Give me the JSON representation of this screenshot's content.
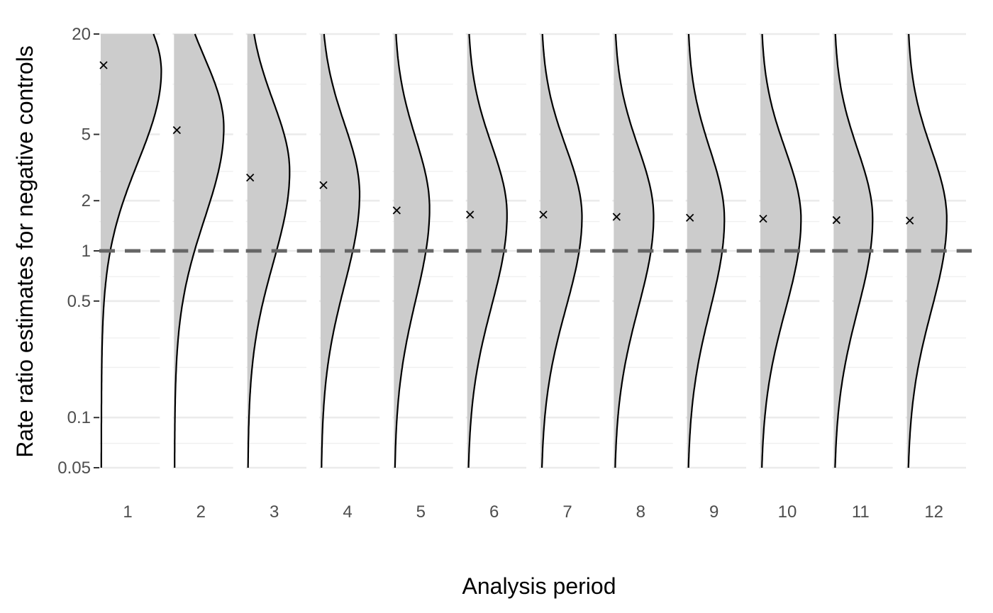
{
  "chart_data": {
    "type": "violin",
    "xlabel": "Analysis period",
    "ylabel": "Rate ratio estimates for negative controls",
    "y_scale": "log",
    "ylim": [
      0.05,
      20
    ],
    "y_ticks": [
      {
        "value": 0.05,
        "label": "0.05"
      },
      {
        "value": 0.1,
        "label": "0.1"
      },
      {
        "value": 0.5,
        "label": "0.5"
      },
      {
        "value": 1,
        "label": "1"
      },
      {
        "value": 2,
        "label": "2"
      },
      {
        "value": 5,
        "label": "5"
      },
      {
        "value": 20,
        "label": "20"
      }
    ],
    "y_minor_gridlines": [
      0.07,
      0.2,
      0.3,
      0.7,
      1.5,
      3,
      10
    ],
    "reference_line": {
      "value": 1,
      "style": "dashed",
      "color": "#666666"
    },
    "grid": true,
    "fill_color": "#cccccc",
    "line_color": "#000000",
    "categories": [
      "1",
      "2",
      "3",
      "4",
      "5",
      "6",
      "7",
      "8",
      "9",
      "10",
      "11",
      "12"
    ],
    "point_estimates": [
      13.0,
      5.3,
      2.75,
      2.48,
      1.75,
      1.65,
      1.65,
      1.6,
      1.58,
      1.56,
      1.53,
      1.52
    ],
    "distribution_modes": [
      12.0,
      5.5,
      3.0,
      2.2,
      1.8,
      1.65,
      1.6,
      1.6,
      1.55,
      1.55,
      1.55,
      1.55
    ],
    "distribution_max_density_relative": [
      0.73,
      0.6,
      0.51,
      0.47,
      0.43,
      0.48,
      0.5,
      0.48,
      0.45,
      0.49,
      0.47,
      0.48
    ]
  }
}
